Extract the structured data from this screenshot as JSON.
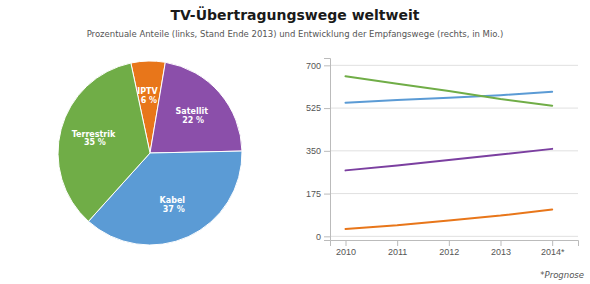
{
  "chart_data": [
    {
      "type": "pie",
      "title": "TV-Übertragungswege weltweit",
      "subtitle": "Prozentuale Anteile (links, Stand Ende 2013) und Entwicklung der Empfangswege (rechts, in Mio.)",
      "categories": [
        "IPTV\n6 %",
        "Satellit\n22 %",
        "Kabel\n37 %",
        "Terrestrik\n35 %"
      ],
      "values": [
        6,
        22,
        37,
        35
      ],
      "colors": [
        "#e8761a",
        "#8b4faa",
        "#5b9bd5",
        "#70ad47"
      ]
    },
    {
      "type": "line",
      "x": [
        2010,
        2011,
        2012,
        2013,
        2014
      ],
      "series": [
        {
          "color": "#5b9bd5",
          "values": [
            547,
            558,
            567,
            578,
            592
          ]
        },
        {
          "color": "#70ad47",
          "values": [
            655,
            625,
            595,
            562,
            535
          ]
        },
        {
          "color": "#7b3fa0",
          "values": [
            270,
            290,
            312,
            335,
            358
          ]
        },
        {
          "color": "#e8761a",
          "values": [
            30,
            45,
            65,
            85,
            110
          ]
        }
      ],
      "xlim": [
        2009.7,
        2014.5
      ],
      "ylim": [
        -15,
        730
      ],
      "xticks": [
        2010,
        2011,
        2012,
        2013,
        {
          "value": 2014,
          "label": "2014*"
        }
      ],
      "yticks": [
        0,
        175,
        350,
        525,
        700
      ],
      "grid": true,
      "annotations": [
        "*Prognose"
      ]
    }
  ]
}
